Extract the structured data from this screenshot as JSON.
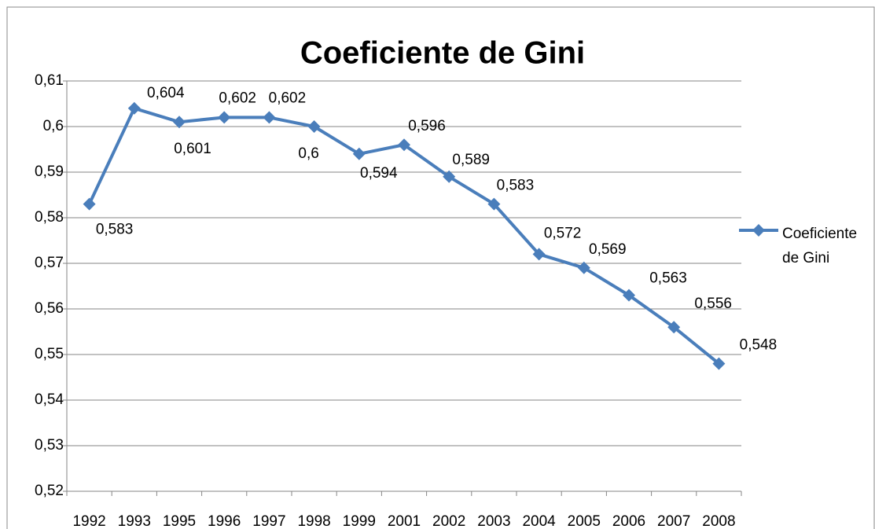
{
  "chart_data": {
    "type": "line",
    "title": "Coeficiente de Gini",
    "categories": [
      "1992",
      "1993",
      "1995",
      "1996",
      "1997",
      "1998",
      "1999",
      "2001",
      "2002",
      "2003",
      "2004",
      "2005",
      "2006",
      "2007",
      "2008"
    ],
    "series": [
      {
        "name": "Coeficiente de Gini",
        "color": "#4a7ebb",
        "values": [
          0.583,
          0.604,
          0.601,
          0.602,
          0.602,
          0.6,
          0.594,
          0.596,
          0.589,
          0.583,
          0.572,
          0.569,
          0.563,
          0.556,
          0.548
        ],
        "value_labels": [
          "0,583",
          "0,604",
          "0,601",
          "0,602",
          "0,602",
          "0,6",
          "0,594",
          "0,596",
          "0,589",
          "0,583",
          "0,572",
          "0,569",
          "0,563",
          "0,556",
          "0,548"
        ]
      }
    ],
    "ylim": [
      0.52,
      0.61
    ],
    "yticks": [
      {
        "value": 0.52,
        "label": "0,52"
      },
      {
        "value": 0.53,
        "label": "0,53"
      },
      {
        "value": 0.54,
        "label": "0,54"
      },
      {
        "value": 0.55,
        "label": "0,55"
      },
      {
        "value": 0.56,
        "label": "0,56"
      },
      {
        "value": 0.57,
        "label": "0,57"
      },
      {
        "value": 0.58,
        "label": "0,58"
      },
      {
        "value": 0.59,
        "label": "0,59"
      },
      {
        "value": 0.6,
        "label": "0,6"
      },
      {
        "value": 0.61,
        "label": "0,61"
      }
    ],
    "grid": true,
    "legend": "right"
  }
}
